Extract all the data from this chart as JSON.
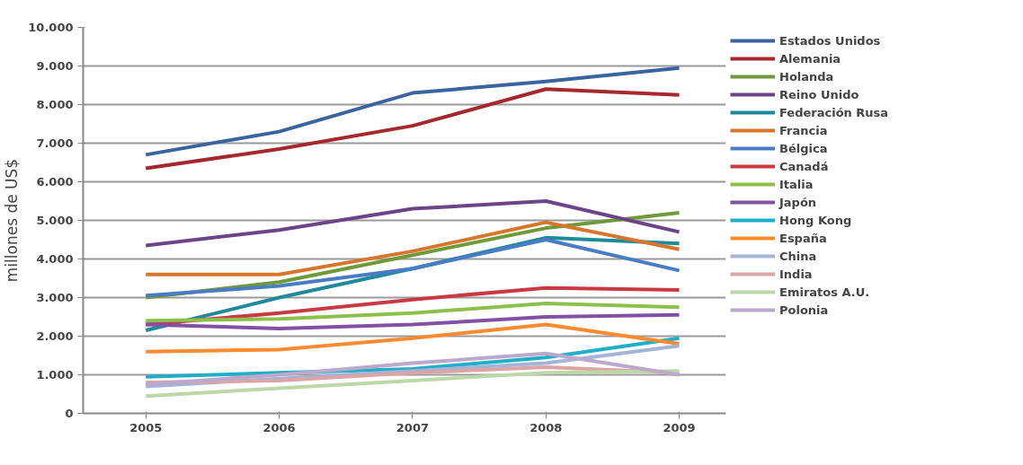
{
  "chart_data": {
    "type": "line",
    "ylabel": "millones de US$",
    "x": [
      2005,
      2006,
      2007,
      2008,
      2009
    ],
    "xlim": [
      2004.53,
      2009.35
    ],
    "xticks": [
      {
        "value": 2005,
        "label": "2005"
      },
      {
        "value": 2006,
        "label": "2006"
      },
      {
        "value": 2007,
        "label": "2007"
      },
      {
        "value": 2008,
        "label": "2008"
      },
      {
        "value": 2009,
        "label": "2009"
      }
    ],
    "ylim": [
      0,
      10000
    ],
    "yticks": [
      {
        "value": 0,
        "label": "0"
      },
      {
        "value": 1000,
        "label": "1.000"
      },
      {
        "value": 2000,
        "label": "2.000"
      },
      {
        "value": 3000,
        "label": "3.000"
      },
      {
        "value": 4000,
        "label": "4.000"
      },
      {
        "value": 5000,
        "label": "5.000"
      },
      {
        "value": 6000,
        "label": "6.000"
      },
      {
        "value": 7000,
        "label": "7.000"
      },
      {
        "value": 8000,
        "label": "8.000"
      },
      {
        "value": 9000,
        "label": "9.000"
      },
      {
        "value": 10000,
        "label": "10.000"
      }
    ],
    "grid": "y",
    "legend": "right",
    "marker": "none",
    "line_style": "solid",
    "series": [
      {
        "name": "Estados Unidos",
        "color": "#3a64a0",
        "values": [
          6700,
          7300,
          8300,
          8600,
          8950
        ]
      },
      {
        "name": "Alemania",
        "color": "#a5282e",
        "values": [
          6350,
          6850,
          7450,
          8400,
          8250
        ]
      },
      {
        "name": "Holanda",
        "color": "#6f9a3a",
        "values": [
          3000,
          3400,
          4100,
          4800,
          5200
        ]
      },
      {
        "name": "Reino Unido",
        "color": "#6c4588",
        "values": [
          4350,
          4750,
          5300,
          5500,
          4700
        ]
      },
      {
        "name": "Federación Rusa",
        "color": "#1f8a9a",
        "values": [
          2150,
          3000,
          3750,
          4550,
          4400
        ]
      },
      {
        "name": "Francia",
        "color": "#d8752c",
        "values": [
          3600,
          3600,
          4200,
          4950,
          4250
        ]
      },
      {
        "name": "Bélgica",
        "color": "#4a7cc6",
        "values": [
          3050,
          3300,
          3750,
          4500,
          3700
        ]
      },
      {
        "name": "Canadá",
        "color": "#c83a42",
        "values": [
          2300,
          2600,
          2950,
          3250,
          3200
        ]
      },
      {
        "name": "Italia",
        "color": "#8cc04c",
        "values": [
          2400,
          2450,
          2600,
          2850,
          2750
        ]
      },
      {
        "name": "Japón",
        "color": "#8250a4",
        "values": [
          2300,
          2200,
          2300,
          2500,
          2550
        ]
      },
      {
        "name": "Hong Kong",
        "color": "#20aec8",
        "values": [
          950,
          1050,
          1150,
          1450,
          1950
        ]
      },
      {
        "name": "España",
        "color": "#fb8a30",
        "values": [
          1600,
          1650,
          1950,
          2300,
          1800
        ]
      },
      {
        "name": "China",
        "color": "#a4b4d8",
        "values": [
          700,
          900,
          1100,
          1300,
          1750
        ]
      },
      {
        "name": "India",
        "color": "#dca4a4",
        "values": [
          800,
          850,
          1050,
          1200,
          1050
        ]
      },
      {
        "name": "Emiratos A.U.",
        "color": "#bcd8a8",
        "values": [
          450,
          650,
          850,
          1050,
          1100
        ]
      },
      {
        "name": "Polonia",
        "color": "#bca8cc",
        "values": [
          750,
          1000,
          1300,
          1550,
          1000
        ]
      }
    ]
  }
}
